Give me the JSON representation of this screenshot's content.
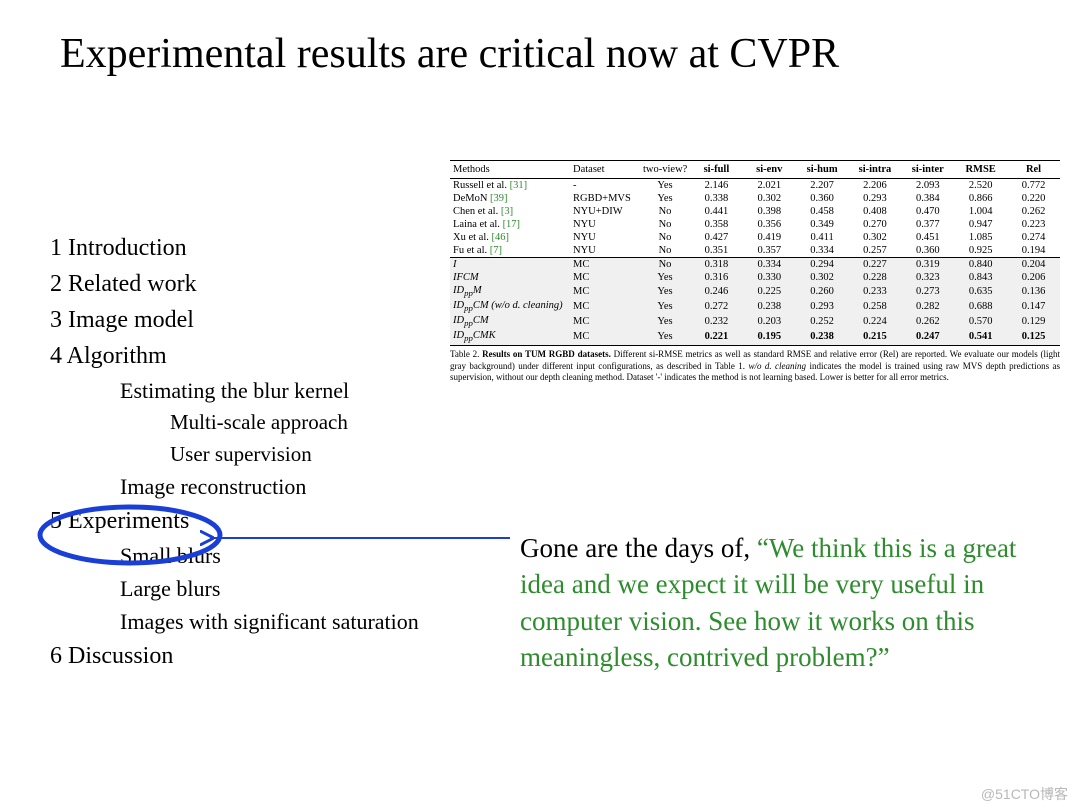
{
  "title": "Experimental results are critical now at CVPR",
  "outline": {
    "items": [
      {
        "level": 1,
        "text": "1 Introduction"
      },
      {
        "level": 1,
        "text": "2 Related work"
      },
      {
        "level": 1,
        "text": "3 Image model"
      },
      {
        "level": 1,
        "text": "4 Algorithm"
      },
      {
        "level": 2,
        "text": "Estimating the blur kernel"
      },
      {
        "level": 3,
        "text": "Multi-scale approach"
      },
      {
        "level": 3,
        "text": "User supervision"
      },
      {
        "level": 2,
        "text": "Image reconstruction"
      },
      {
        "level": 1,
        "text": "5 Experiments"
      },
      {
        "level": 2,
        "text": "Small blurs"
      },
      {
        "level": 2,
        "text": "Large blurs"
      },
      {
        "level": 2,
        "text": "Images with significant saturation"
      },
      {
        "level": 1,
        "text": "6 Discussion"
      }
    ]
  },
  "annotation": {
    "circle_color": "#1a3fd6",
    "circle_stroke": 5,
    "arrow_color": "#1a3fd6",
    "arrow_stroke": 2
  },
  "quote": {
    "lead": "Gone are the days of, ",
    "green": "“We think this is a great idea and we expect it will be very useful in computer vision.  See how it works on this meaningless, contrived problem?”",
    "green_color": "#2e8b2e"
  },
  "table": {
    "headers": [
      "Methods",
      "Dataset",
      "two-view?",
      "si-full",
      "si-env",
      "si-hum",
      "si-intra",
      "si-inter",
      "RMSE",
      "Rel"
    ],
    "header_bold_from": 3,
    "rows_top": [
      {
        "method": "Russell et al. ",
        "ref": "[31]",
        "dataset": "-",
        "tv": "Yes",
        "v": [
          "2.146",
          "2.021",
          "2.207",
          "2.206",
          "2.093",
          "2.520",
          "0.772"
        ]
      },
      {
        "method": "DeMoN ",
        "ref": "[39]",
        "dataset": "RGBD+MVS",
        "tv": "Yes",
        "v": [
          "0.338",
          "0.302",
          "0.360",
          "0.293",
          "0.384",
          "0.866",
          "0.220"
        ]
      },
      {
        "method": "Chen et al. ",
        "ref": "[3]",
        "dataset": "NYU+DIW",
        "tv": "No",
        "v": [
          "0.441",
          "0.398",
          "0.458",
          "0.408",
          "0.470",
          "1.004",
          "0.262"
        ]
      },
      {
        "method": "Laina et al. ",
        "ref": "[17]",
        "dataset": "NYU",
        "tv": "No",
        "v": [
          "0.358",
          "0.356",
          "0.349",
          "0.270",
          "0.377",
          "0.947",
          "0.223"
        ]
      },
      {
        "method": "Xu et al. ",
        "ref": "[46]",
        "dataset": "NYU",
        "tv": "No",
        "v": [
          "0.427",
          "0.419",
          "0.411",
          "0.302",
          "0.451",
          "1.085",
          "0.274"
        ]
      },
      {
        "method": "Fu et al. ",
        "ref": "[7]",
        "dataset": "NYU",
        "tv": "No",
        "v": [
          "0.351",
          "0.357",
          "0.334",
          "0.257",
          "0.360",
          "0.925",
          "0.194"
        ]
      }
    ],
    "rows_bottom": [
      {
        "method_html": "I",
        "dataset": "MC",
        "tv": "No",
        "v": [
          "0.318",
          "0.334",
          "0.294",
          "0.227",
          "0.319",
          "0.840",
          "0.204"
        ]
      },
      {
        "method_html": "IFCM",
        "dataset": "MC",
        "tv": "Yes",
        "v": [
          "0.316",
          "0.330",
          "0.302",
          "0.228",
          "0.323",
          "0.843",
          "0.206"
        ]
      },
      {
        "method_html": "ID_{pp}M",
        "dataset": "MC",
        "tv": "Yes",
        "v": [
          "0.246",
          "0.225",
          "0.260",
          "0.233",
          "0.273",
          "0.635",
          "0.136"
        ]
      },
      {
        "method_html": "ID_{pp}CM (w/o d. cleaning)",
        "dataset": "MC",
        "tv": "Yes",
        "v": [
          "0.272",
          "0.238",
          "0.293",
          "0.258",
          "0.282",
          "0.688",
          "0.147"
        ]
      },
      {
        "method_html": "ID_{pp}CM",
        "dataset": "MC",
        "tv": "Yes",
        "v": [
          "0.232",
          "0.203",
          "0.252",
          "0.224",
          "0.262",
          "0.570",
          "0.129"
        ]
      },
      {
        "method_html": "ID_{pp}CMK",
        "dataset": "MC",
        "tv": "Yes",
        "v": [
          "0.221",
          "0.195",
          "0.238",
          "0.215",
          "0.247",
          "0.541",
          "0.125"
        ],
        "bold": true
      }
    ],
    "caption": {
      "lead": "Table 2. ",
      "bold": "Results on TUM RGBD datasets.",
      "rest1": " Different si-RMSE metrics as well as standard RMSE and relative error (Rel) are reported. We evaluate our models (light gray background) under different input configurations, as described in Table 1. ",
      "ital": "w/o d. cleaning",
      "rest2": " indicates the model is trained using raw MVS depth predictions as supervision, without our depth cleaning method. Dataset '-' indicates the method is not learning based. Lower is better for all error metrics."
    }
  },
  "watermark": "@51CTO博客"
}
